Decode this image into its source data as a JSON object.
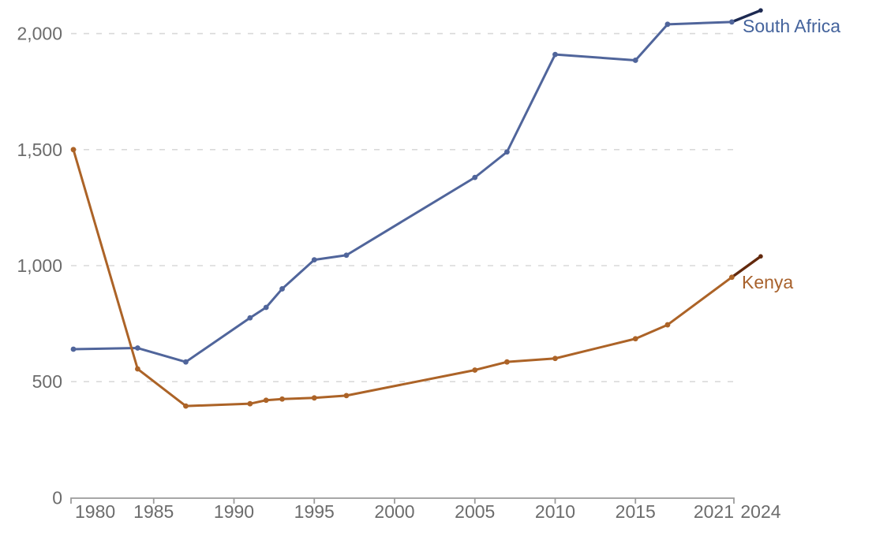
{
  "chart_data": {
    "type": "line",
    "title": "",
    "xlabel": "",
    "ylabel": "",
    "grid": "horizontal-dashed",
    "legend_position": "line-end-labels",
    "xlim": [
      1980,
      2024
    ],
    "ylim": [
      0,
      2100
    ],
    "projection_start_year": 2021,
    "years": [
      1980,
      1984,
      1987,
      1991,
      1992,
      1993,
      1995,
      1997,
      2005,
      2007,
      2010,
      2015,
      2017,
      2021,
      2024
    ],
    "series": [
      {
        "name": "South Africa",
        "color": "#50659B",
        "projection_color": "#1D2A52",
        "label_color": "#44639C",
        "values": [
          640,
          645,
          585,
          775,
          820,
          900,
          1025,
          1045,
          1380,
          1490,
          1910,
          1885,
          2040,
          2050,
          2100
        ]
      },
      {
        "name": "Kenya",
        "color": "#AC6327",
        "projection_color": "#63290D",
        "label_color": "#A8622D",
        "values": [
          1500,
          555,
          395,
          405,
          420,
          425,
          430,
          440,
          550,
          585,
          600,
          685,
          745,
          950,
          1040
        ]
      }
    ],
    "y_ticks": [
      {
        "value": 0,
        "label": "0"
      },
      {
        "value": 500,
        "label": "500"
      },
      {
        "value": 1000,
        "label": "1,000"
      },
      {
        "value": 1500,
        "label": "1,500"
      },
      {
        "value": 2000,
        "label": "2,000"
      }
    ],
    "x_ticks": [
      {
        "year": 1980,
        "label": "1980",
        "align": "start"
      },
      {
        "year": 1985,
        "label": "1985",
        "align": "middle"
      },
      {
        "year": 1990,
        "label": "1990",
        "align": "middle"
      },
      {
        "year": 1995,
        "label": "1995",
        "align": "middle"
      },
      {
        "year": 2000,
        "label": "2000",
        "align": "middle"
      },
      {
        "year": 2005,
        "label": "2005",
        "align": "middle"
      },
      {
        "year": 2010,
        "label": "2010",
        "align": "middle"
      },
      {
        "year": 2015,
        "label": "2015",
        "align": "middle"
      },
      {
        "year": 2021,
        "label": "2021",
        "align": "end"
      },
      {
        "year": 2024,
        "label": "2024",
        "align": "middle"
      }
    ],
    "colors": {
      "grid": "#D9D9D9",
      "axis": "#9B9B9B",
      "tick_label": "#6C6C6C",
      "background": "#FFFFFF"
    }
  }
}
